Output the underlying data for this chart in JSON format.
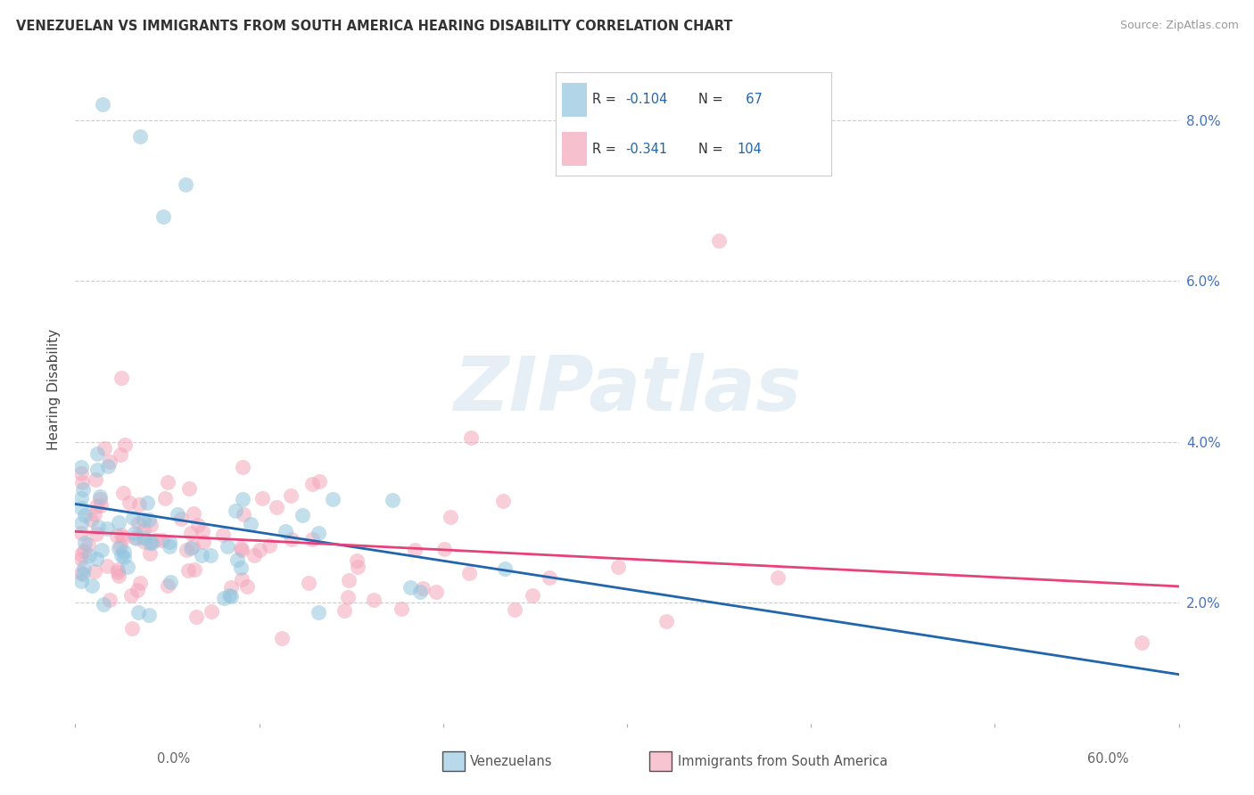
{
  "title": "VENEZUELAN VS IMMIGRANTS FROM SOUTH AMERICA HEARING DISABILITY CORRELATION CHART",
  "source": "Source: ZipAtlas.com",
  "ylabel": "Hearing Disability",
  "R1": -0.104,
  "N1": 67,
  "R2": -0.341,
  "N2": 104,
  "watermark": "ZIPatlas",
  "blue_scatter": "#92c5de",
  "pink_scatter": "#f4a6bb",
  "blue_line": "#2166ac",
  "pink_line": "#e8417a",
  "legend_label_1": "Venezuelans",
  "legend_label_2": "Immigrants from South America",
  "xlim": [
    0,
    60
  ],
  "ylim_bottom": 0.5,
  "ylim_top": 8.8,
  "ytick_vals": [
    2.0,
    4.0,
    6.0,
    8.0
  ],
  "title_color": "#333333",
  "source_color": "#999999",
  "right_tick_color": "#4472C4",
  "grid_color": "#cccccc",
  "background": "#ffffff",
  "legend_text_dark": "#333333",
  "legend_val_color": "#2166ac"
}
